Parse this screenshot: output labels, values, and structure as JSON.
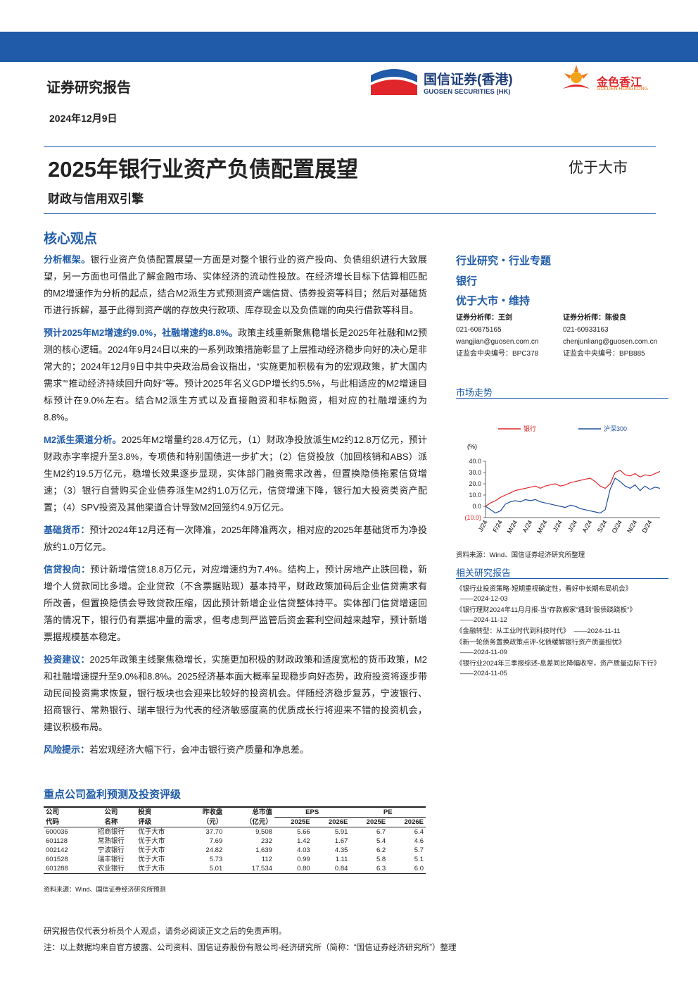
{
  "header": {
    "report_type": "证券研究报告",
    "date": "2024年12月9日",
    "logo_name": "国信证券(香港)",
    "logo_en": "GUOSEN SECURITIES (HK)",
    "logo2_name": "金色香江",
    "logo2_en": "GOLDEN HONGKONG"
  },
  "title": "2025年银行业资产负债配置展望",
  "subtitle": "财政与信用双引擎",
  "rating": "优于大市",
  "core": {
    "heading": "核心观点",
    "paragraphs": [
      {
        "lead": "分析框架。",
        "text": "银行业资产负债配置展望一方面是对整个银行业的资产投向、负债组织进行大致展望，另一方面也可借此了解金融市场、实体经济的流动性投放。在经济增长目标下估算相匹配的M2增速作为分析的起点，结合M2派生方式预测资产端信贷、债券投资等科目；然后对基础货币进行拆解，基于此得到资产端的存放央行款项、库存现金以及负债端的向央行借款等科目。"
      },
      {
        "lead": "预计2025年M2增速约9.0%，社融增速约8.8%。",
        "text": "政策主线重新聚焦稳增长是2025年社融和M2预测的核心逻辑。2024年9月24日以来的一系列政策措施彰显了上层推动经济稳步向好的决心是非常大的；2024年12月9日中共中央政治局会议指出，“实施更加积极有为的宏观政策，扩大国内需求”“推动经济持续回升向好”等。预计2025年名义GDP增长约5.5%，与此相适应的M2增速目标预计在9.0%左右。结合M2派生方式以及直接融资和非标融资，相对应的社融增速约为8.8%。"
      },
      {
        "lead": "M2派生渠道分析。",
        "text": "2025年M2增量约28.4万亿元，（1）财政净投放派生M2约12.8万亿元，预计财政赤字率提升至3.8%，专项债和特别国债进一步扩大；（2）信贷投放（加回核销和ABS）派生M2约19.5万亿元，稳增长效果逐步显现，实体部门融资需求改善，但置换隐债拖累信贷增速；（3）银行自营购买企业债券派生M2约1.0万亿元，信贷增速下降，银行加大投资类资产配置；（4）SPV投资及其他渠道合计导致M2回笼约4.9万亿元。"
      },
      {
        "lead": "基础货币：",
        "text": "预计2024年12月还有一次降准，2025年降准两次，相对应的2025年基础货币为净投放约1.0万亿元。"
      },
      {
        "lead": "信贷投向：",
        "text": "预计新增信贷18.8万亿元，对应增速约为7.4%。结构上，预计房地产止跌回稳，新增个人贷款同比多增。企业贷款（不含票据贴现）基本持平，财政政策加码后企业信贷需求有所改善，但置换隐债会导致贷款压缩，因此预计新增企业信贷整体持平。实体部门信贷增速回落的情况下，银行仍有票据冲量的需求，但考虑到严监管后资金套利空间越来越窄，预计新增票据规模基本稳定。"
      },
      {
        "lead": "投资建议：",
        "text": "2025年政策主线聚焦稳增长，实施更加积极的财政政策和适度宽松的货币政策，M2和社融增速提升至9.0%和8.8%。2025经济基本面大概率呈现稳步向好态势，政府投资将逐步带动民间投资需求恢复，银行板块也会迎来比较好的投资机会。伴随经济稳步复苏，宁波银行、招商银行、常熟银行、瑞丰银行为代表的经济敏感度高的优质成长行将迎来不错的投资机会，建议积极布局。"
      },
      {
        "lead": "风险提示：",
        "text": "若宏观经济大幅下行，会冲击银行资产质量和净息差。"
      }
    ]
  },
  "sidebar": {
    "lines": [
      "行业研究・行业专题",
      "银行",
      "优于大市・维持"
    ],
    "analysts": [
      {
        "title": "证券分析师：王剑",
        "phone": "021-60875165",
        "email": "wangjian@guosen.com.cn",
        "cert": "证监会中央编号：BPC378"
      },
      {
        "title": "证券分析师：陈俊良",
        "phone": "021-60933163",
        "email": "chenjunliang@guosen.com.cn",
        "cert": "证监会中央编号：BPB885"
      }
    ],
    "chart_heading": "市场走势",
    "chart_source": "资料来源：Wind、国信证券经济研究所整理",
    "related_heading": "相关研究报告",
    "related": [
      {
        "title": "《银行业投资策略-短期重视确定性，看好中长期布局机会》",
        "date": "——2024-12-03"
      },
      {
        "title": "《银行理财2024年11月月报-当“存款搬家”遇到“股债跷跷板”》",
        "date": "——2024-11-12"
      },
      {
        "title": "《金融转型：从工业时代到科技时代》",
        "date": "——2024-11-11"
      },
      {
        "title": "《新一轮债务置换政策点评-化债缓解银行资产质量担忧》",
        "date": "——2024-11-09"
      },
      {
        "title": "《银行业2024年三季报综述-息差同比降幅收窄，资产质量边际下行》",
        "date": "——2024-11-05"
      }
    ]
  },
  "chart_data": {
    "type": "line",
    "y_unit": "(%)",
    "categories": [
      "J/24",
      null,
      null,
      "F/24",
      null,
      null,
      "M/24",
      null,
      null,
      "A/24",
      null,
      null,
      "M/24",
      null,
      null,
      "J/24",
      null,
      null,
      "J/24",
      null,
      null,
      "A/24",
      null,
      null,
      "S/24",
      null,
      null,
      "O/24",
      null,
      null,
      "N/24",
      null,
      null,
      "D/24",
      null,
      null
    ],
    "series": [
      {
        "name": "银行",
        "color": "#e0262a",
        "values": [
          0,
          3,
          5,
          8,
          10,
          12,
          14,
          15,
          16,
          17,
          18,
          16,
          18,
          19,
          20,
          18,
          19,
          21,
          22,
          23,
          24,
          25,
          22,
          18,
          16,
          20,
          30,
          32,
          28,
          27,
          29,
          26,
          28,
          27,
          29,
          31
        ]
      },
      {
        "name": "沪深300",
        "color": "#1f4e9c",
        "values": [
          0,
          -3,
          -6,
          -4,
          2,
          4,
          5,
          4,
          6,
          5,
          6,
          4,
          3,
          2,
          1,
          0,
          -1,
          1,
          0,
          -2,
          -3,
          -4,
          -5,
          -6,
          -3,
          15,
          25,
          22,
          18,
          16,
          19,
          14,
          18,
          15,
          17,
          16
        ]
      }
    ],
    "ylim": [
      -10,
      40
    ],
    "yticks": [
      {
        "value": 40,
        "label": "40.0"
      },
      {
        "value": 30,
        "label": "30.0"
      },
      {
        "value": 20,
        "label": "20.0"
      },
      {
        "value": 10,
        "label": "10.0"
      },
      {
        "value": 0,
        "label": "0.0"
      },
      {
        "value": -10,
        "label": "(10.0)"
      }
    ]
  },
  "table": {
    "title": "重点公司盈利预测及投资评级",
    "header1": [
      "公司",
      "公司",
      "投资",
      "昨收盘",
      "总市值",
      "EPS",
      "PE"
    ],
    "header2": [
      "代码",
      "名称",
      "评级",
      "（元）",
      "（亿元）",
      "2025E",
      "2026E",
      "2025E",
      "2026E"
    ],
    "rows": [
      [
        "600036",
        "招商银行",
        "优于大市",
        "37.70",
        "9,508",
        "5.66",
        "5.91",
        "6.7",
        "6.4"
      ],
      [
        "601128",
        "常熟银行",
        "优于大市",
        "7.69",
        "232",
        "1.42",
        "1.67",
        "5.4",
        "4.6"
      ],
      [
        "002142",
        "宁波银行",
        "优于大市",
        "24.82",
        "1,639",
        "4.03",
        "4.35",
        "6.2",
        "5.7"
      ],
      [
        "601528",
        "瑞丰银行",
        "优于大市",
        "5.73",
        "112",
        "0.99",
        "1.11",
        "5.8",
        "5.1"
      ],
      [
        "601288",
        "农业银行",
        "优于大市",
        "5.01",
        "17,534",
        "0.80",
        "0.84",
        "6.3",
        "6.0"
      ]
    ],
    "source": "资料来源：Wind、国信证券经济研究所预测"
  },
  "footer": [
    "研究报告仅代表分析员个人观点，请务必阅读正文之后的免责声明。",
    "注：以上数据均来自官方披露、公司资料、国信证券股份有限公司-经济研究所（简称：“国信证券经济研究所”）整理"
  ]
}
